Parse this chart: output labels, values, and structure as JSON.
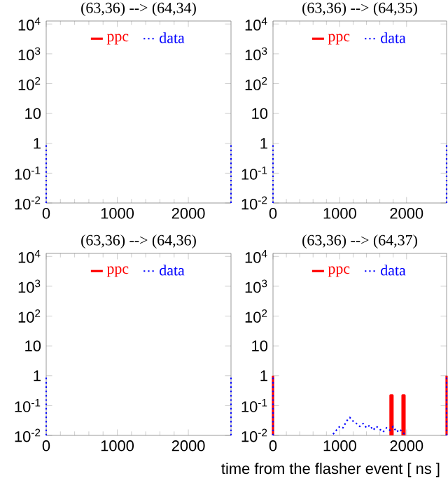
{
  "chart_data": [
    {
      "type": "line",
      "title": "(63,36) --> (64,34)",
      "xlim": [
        0,
        2600
      ],
      "xticks": [
        0,
        1000,
        2000
      ],
      "ylim": [
        0.01,
        12600
      ],
      "log": "y",
      "legend": "top",
      "yticks": [
        {
          "value": 10000,
          "label": "10$^{4}$"
        },
        {
          "value": 1000,
          "label": "10$^{3}$"
        },
        {
          "value": 100,
          "label": "10$^{2}$"
        },
        10,
        1,
        {
          "value": 0.1,
          "label": "10$^{-1}$"
        },
        {
          "value": 0.01,
          "label": "10$^{-2}$"
        }
      ],
      "series": [
        {
          "name": "ppc",
          "color": "#ff0000",
          "line_style": "solid"
        },
        {
          "name": "data",
          "color": "#0000ff",
          "line_style": "dotted",
          "x": [
            0,
            0,
            1500,
            2600,
            2600
          ],
          "values": [
            0.01,
            1,
            null,
            0.01,
            1
          ]
        }
      ]
    },
    {
      "type": "line",
      "title": "(63,36) --> (64,35)",
      "xlim": [
        0,
        2600
      ],
      "xticks": [
        0,
        1000,
        2000
      ],
      "ylim": [
        0.01,
        12600
      ],
      "log": "y",
      "legend": "top",
      "yticks": [
        {
          "value": 10000,
          "label": "10$^{4}$"
        },
        {
          "value": 1000,
          "label": "10$^{3}$"
        },
        {
          "value": 100,
          "label": "10$^{2}$"
        },
        10,
        1,
        {
          "value": 0.1,
          "label": "10$^{-1}$"
        },
        {
          "value": 0.01,
          "label": "10$^{-2}$"
        }
      ],
      "series": [
        {
          "name": "ppc",
          "color": "#ff0000",
          "line_style": "solid"
        },
        {
          "name": "data",
          "color": "#0000ff",
          "line_style": "dotted",
          "x": [
            0,
            0,
            1500,
            2600,
            2600
          ],
          "values": [
            0.01,
            1,
            null,
            0.01,
            1
          ]
        }
      ]
    },
    {
      "type": "line",
      "title": "(63,36) --> (64,36)",
      "xlim": [
        0,
        2600
      ],
      "xticks": [
        0,
        1000,
        2000
      ],
      "ylim": [
        0.01,
        12600
      ],
      "log": "y",
      "legend": "top",
      "yticks": [
        {
          "value": 10000,
          "label": "10$^{4}$"
        },
        {
          "value": 1000,
          "label": "10$^{3}$"
        },
        {
          "value": 100,
          "label": "10$^{2}$"
        },
        10,
        1,
        {
          "value": 0.1,
          "label": "10$^{-1}$"
        },
        {
          "value": 0.01,
          "label": "10$^{-2}$"
        }
      ],
      "series": [
        {
          "name": "ppc",
          "color": "#ff0000",
          "line_style": "solid"
        },
        {
          "name": "data",
          "color": "#0000ff",
          "line_style": "dotted",
          "x": [
            0,
            0,
            1500,
            2600,
            2600
          ],
          "values": [
            0.01,
            1,
            null,
            0.01,
            1
          ]
        }
      ]
    },
    {
      "type": "line",
      "title": "(63,36) --> (64,37)",
      "xlabel": "time from the flasher event [ ns ]",
      "xlim": [
        0,
        2600
      ],
      "xticks": [
        0,
        1000,
        2000
      ],
      "ylim": [
        0.01,
        12600
      ],
      "log": "y",
      "legend": "top",
      "yticks": [
        {
          "value": 10000,
          "label": "10$^{4}$"
        },
        {
          "value": 1000,
          "label": "10$^{3}$"
        },
        {
          "value": 100,
          "label": "10$^{2}$"
        },
        10,
        1,
        {
          "value": 0.1,
          "label": "10$^{-1}$"
        },
        {
          "value": 0.01,
          "label": "10$^{-2}$"
        }
      ],
      "series": [
        {
          "name": "ppc",
          "color": "#ff0000",
          "line_style": "solid",
          "x": [
            0,
            0,
            500,
            1760,
            1760,
            1790,
            1790,
            1850,
            1940,
            1940,
            1970,
            1970,
            2300,
            2600,
            2600
          ],
          "values": [
            0.01,
            1,
            null,
            0.01,
            0.22,
            0.22,
            0.01,
            null,
            0.01,
            0.22,
            0.22,
            0.01,
            null,
            0.01,
            1
          ]
        },
        {
          "name": "data",
          "color": "#0000ff",
          "line_style": "dotted",
          "x": [
            0,
            0,
            500,
            900,
            950,
            1000,
            1050,
            1100,
            1150,
            1200,
            1250,
            1300,
            1350,
            1400,
            1450,
            1500,
            1550,
            1600,
            1650,
            1700,
            1750,
            1800,
            1850,
            1900,
            1950,
            2000,
            2300,
            2600,
            2600
          ],
          "values": [
            0.01,
            1,
            null,
            0.011,
            0.015,
            0.02,
            0.018,
            0.03,
            0.04,
            0.03,
            0.025,
            0.02,
            0.025,
            0.018,
            0.022,
            0.015,
            0.02,
            0.016,
            0.013,
            0.018,
            0.015,
            0.02,
            0.013,
            0.016,
            0.012,
            0.01,
            null,
            0.01,
            1
          ]
        }
      ]
    }
  ]
}
